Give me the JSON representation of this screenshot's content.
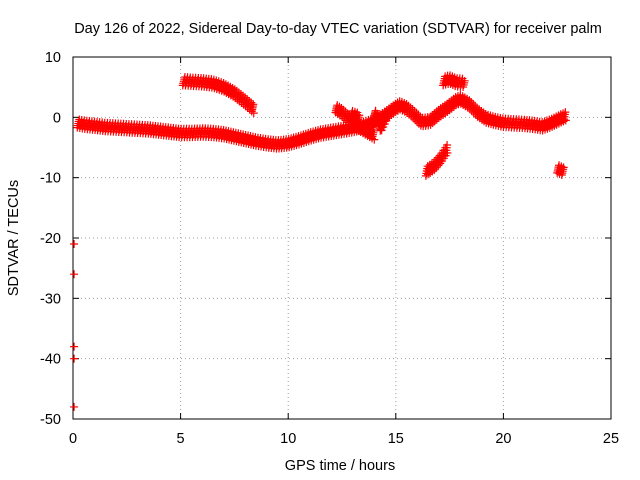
{
  "chart_data": {
    "type": "scatter",
    "title": "Day 126 of 2022, Sidereal Day-to-day VTEC variation (SDTVAR) for receiver palm",
    "xlabel": "GPS time / hours",
    "ylabel": "SDTVAR / TECUs",
    "xlim": [
      0,
      25
    ],
    "ylim": [
      -50,
      10
    ],
    "grid": true,
    "x_ticks": [
      "0",
      "5",
      "10",
      "15",
      "20",
      "25"
    ],
    "y_ticks": [
      "10",
      "0",
      "-10",
      "-20",
      "-30",
      "-40",
      "-50"
    ],
    "marker_color": "#ff0000",
    "series": [
      {
        "name": "main",
        "points": [
          [
            0.2,
            -1.0
          ],
          [
            0.5,
            -1.2
          ],
          [
            1.0,
            -1.4
          ],
          [
            1.5,
            -1.6
          ],
          [
            2.0,
            -1.7
          ],
          [
            2.5,
            -1.8
          ],
          [
            3.0,
            -1.9
          ],
          [
            3.5,
            -2.0
          ],
          [
            4.0,
            -2.2
          ],
          [
            4.5,
            -2.4
          ],
          [
            5.0,
            -2.6
          ],
          [
            5.5,
            -2.6
          ],
          [
            6.0,
            -2.5
          ],
          [
            6.5,
            -2.6
          ],
          [
            7.0,
            -2.8
          ],
          [
            7.5,
            -3.2
          ],
          [
            8.0,
            -3.6
          ],
          [
            8.5,
            -4.0
          ],
          [
            9.0,
            -4.3
          ],
          [
            9.5,
            -4.5
          ],
          [
            10.0,
            -4.3
          ],
          [
            10.5,
            -3.8
          ],
          [
            11.0,
            -3.2
          ],
          [
            11.5,
            -2.7
          ],
          [
            12.0,
            -2.4
          ],
          [
            12.5,
            -2.1
          ],
          [
            13.0,
            -1.8
          ],
          [
            13.5,
            -1.4
          ],
          [
            14.0,
            -0.8
          ],
          [
            14.5,
            0.3
          ],
          [
            15.0,
            1.6
          ],
          [
            15.2,
            2.0
          ],
          [
            15.5,
            1.5
          ],
          [
            15.8,
            0.6
          ],
          [
            16.2,
            -0.8
          ],
          [
            16.6,
            -0.6
          ],
          [
            17.0,
            0.6
          ],
          [
            17.4,
            1.6
          ],
          [
            17.8,
            2.7
          ],
          [
            18.0,
            3.0
          ],
          [
            18.4,
            2.2
          ],
          [
            18.8,
            0.8
          ],
          [
            19.2,
            -0.2
          ],
          [
            19.6,
            -0.6
          ],
          [
            20.0,
            -0.9
          ],
          [
            20.5,
            -1.0
          ],
          [
            21.0,
            -1.1
          ],
          [
            21.5,
            -1.3
          ],
          [
            21.8,
            -1.5
          ],
          [
            22.2,
            -1.0
          ],
          [
            22.6,
            -0.3
          ],
          [
            22.9,
            0.2
          ]
        ]
      },
      {
        "name": "arc-5-8",
        "points": [
          [
            5.1,
            6.0
          ],
          [
            5.5,
            5.9
          ],
          [
            6.0,
            5.8
          ],
          [
            6.5,
            5.6
          ],
          [
            7.0,
            5.0
          ],
          [
            7.5,
            4.0
          ],
          [
            8.0,
            2.6
          ],
          [
            8.4,
            1.4
          ]
        ]
      },
      {
        "name": "branch-12-14",
        "points": [
          [
            12.2,
            1.5
          ],
          [
            12.5,
            0.8
          ],
          [
            12.8,
            -0.2
          ],
          [
            13.2,
            -1.4
          ],
          [
            13.6,
            -2.2
          ],
          [
            14.0,
            -3.0
          ]
        ]
      },
      {
        "name": "branch-12-13",
        "points": [
          [
            12.9,
            0.5
          ],
          [
            13.1,
            0.2
          ],
          [
            13.3,
            0.0
          ]
        ]
      },
      {
        "name": "spike-14",
        "points": [
          [
            14.0,
            0.8
          ],
          [
            14.2,
            -0.5
          ],
          [
            14.3,
            -1.8
          ],
          [
            14.4,
            -1.0
          ],
          [
            14.6,
            0.4
          ]
        ]
      },
      {
        "name": "drop-16-17",
        "points": [
          [
            16.4,
            -9.0
          ],
          [
            16.8,
            -8.0
          ],
          [
            17.1,
            -6.8
          ],
          [
            17.4,
            -5.2
          ]
        ]
      },
      {
        "name": "bump-17-18",
        "points": [
          [
            17.2,
            6.0
          ],
          [
            17.5,
            6.3
          ],
          [
            17.8,
            5.8
          ],
          [
            18.2,
            5.7
          ]
        ]
      },
      {
        "name": "tail-22",
        "points": [
          [
            22.5,
            -8.5
          ],
          [
            22.8,
            -9.0
          ]
        ]
      },
      {
        "name": "outliers-x0",
        "points": [
          [
            0.05,
            -21
          ],
          [
            0.05,
            -26
          ],
          [
            0.05,
            -38
          ],
          [
            0.05,
            -40
          ],
          [
            0.05,
            -48
          ]
        ]
      }
    ]
  }
}
